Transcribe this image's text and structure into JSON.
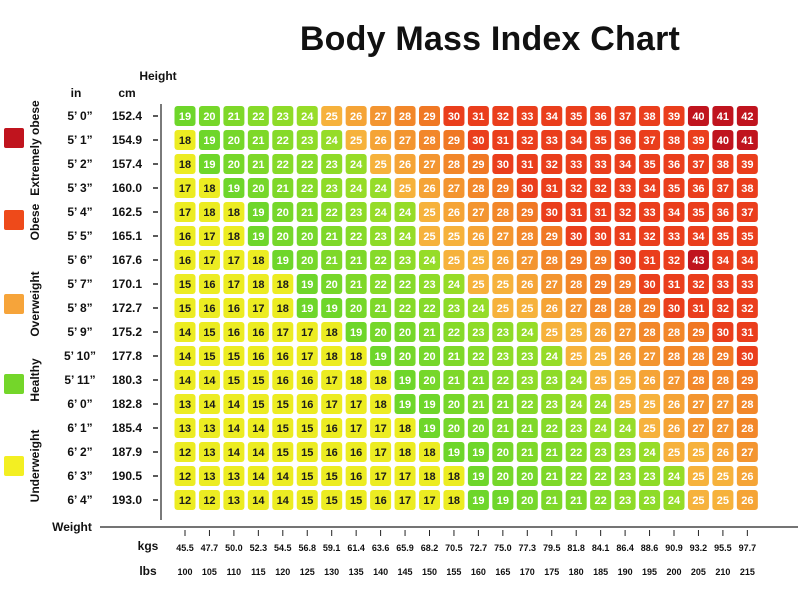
{
  "chart_data": {
    "type": "heatmap",
    "title": "Body Mass Index Chart",
    "height_axis_label": "Height",
    "height_unit_in": "in",
    "height_unit_cm": "cm",
    "weight_axis_label": "Weight",
    "weight_unit_kg": "kgs",
    "weight_unit_lb": "lbs",
    "heights_in": [
      "5’ 0”",
      "5’ 1”",
      "5’ 2”",
      "5’ 3”",
      "5’ 4”",
      "5’ 5”",
      "5’ 6”",
      "5’ 7”",
      "5’ 8”",
      "5’ 9”",
      "5’ 10”",
      "5’ 11”",
      "6’ 0”",
      "6’ 1”",
      "6’ 2”",
      "6’ 3”",
      "6’ 4”"
    ],
    "heights_cm": [
      "152.4",
      "154.9",
      "157.4",
      "160.0",
      "162.5",
      "165.1",
      "167.6",
      "170.1",
      "172.7",
      "175.2",
      "177.8",
      "180.3",
      "182.8",
      "185.4",
      "187.9",
      "190.5",
      "193.0"
    ],
    "weights_kg": [
      "45.5",
      "47.7",
      "50.0",
      "52.3",
      "54.5",
      "56.8",
      "59.1",
      "61.4",
      "63.6",
      "65.9",
      "68.2",
      "70.5",
      "72.7",
      "75.0",
      "77.3",
      "79.5",
      "81.8",
      "84.1",
      "86.4",
      "88.6",
      "90.9",
      "93.2",
      "95.5",
      "97.7"
    ],
    "weights_lb": [
      "100",
      "105",
      "110",
      "115",
      "120",
      "125",
      "130",
      "135",
      "140",
      "145",
      "150",
      "155",
      "160",
      "165",
      "170",
      "175",
      "180",
      "185",
      "190",
      "195",
      "200",
      "205",
      "210",
      "215"
    ],
    "values": [
      [
        19,
        20,
        21,
        22,
        23,
        24,
        25,
        26,
        27,
        28,
        29,
        30,
        31,
        32,
        33,
        34,
        35,
        36,
        37,
        38,
        39,
        40,
        41,
        42
      ],
      [
        18,
        19,
        20,
        21,
        22,
        23,
        24,
        25,
        26,
        27,
        28,
        29,
        30,
        31,
        32,
        33,
        34,
        35,
        36,
        37,
        38,
        39,
        40,
        41
      ],
      [
        18,
        19,
        20,
        21,
        22,
        22,
        23,
        24,
        25,
        26,
        27,
        28,
        29,
        30,
        31,
        32,
        33,
        33,
        34,
        35,
        36,
        37,
        38,
        39
      ],
      [
        17,
        18,
        19,
        20,
        21,
        22,
        23,
        24,
        24,
        25,
        26,
        27,
        28,
        29,
        30,
        31,
        32,
        32,
        33,
        34,
        35,
        36,
        37,
        38
      ],
      [
        17,
        18,
        18,
        19,
        20,
        21,
        22,
        23,
        24,
        24,
        25,
        26,
        27,
        28,
        29,
        30,
        31,
        31,
        32,
        33,
        34,
        35,
        36,
        37
      ],
      [
        16,
        17,
        18,
        19,
        20,
        20,
        21,
        22,
        23,
        24,
        25,
        25,
        26,
        27,
        28,
        29,
        30,
        30,
        31,
        32,
        33,
        34,
        35,
        35
      ],
      [
        16,
        17,
        17,
        18,
        19,
        20,
        21,
        21,
        22,
        23,
        24,
        25,
        25,
        26,
        27,
        28,
        29,
        29,
        30,
        31,
        32,
        43,
        34,
        34
      ],
      [
        15,
        16,
        17,
        18,
        18,
        19,
        20,
        21,
        22,
        22,
        23,
        24,
        25,
        25,
        26,
        27,
        28,
        29,
        29,
        30,
        31,
        32,
        33,
        33
      ],
      [
        15,
        16,
        16,
        17,
        18,
        19,
        19,
        20,
        21,
        22,
        22,
        23,
        24,
        25,
        25,
        26,
        27,
        28,
        28,
        29,
        30,
        31,
        32,
        32
      ],
      [
        14,
        15,
        16,
        16,
        17,
        17,
        18,
        19,
        20,
        20,
        21,
        22,
        23,
        23,
        24,
        25,
        25,
        26,
        27,
        28,
        28,
        29,
        30,
        31
      ],
      [
        14,
        15,
        15,
        16,
        16,
        17,
        18,
        18,
        19,
        20,
        20,
        21,
        22,
        23,
        23,
        24,
        25,
        25,
        26,
        27,
        28,
        28,
        29,
        30
      ],
      [
        14,
        14,
        15,
        15,
        16,
        16,
        17,
        18,
        18,
        19,
        20,
        21,
        21,
        22,
        23,
        23,
        24,
        25,
        25,
        26,
        27,
        28,
        28,
        29
      ],
      [
        13,
        14,
        14,
        15,
        15,
        16,
        17,
        17,
        18,
        19,
        19,
        20,
        21,
        21,
        22,
        23,
        24,
        24,
        25,
        25,
        26,
        27,
        27,
        28
      ],
      [
        13,
        13,
        14,
        14,
        15,
        15,
        16,
        17,
        17,
        18,
        19,
        20,
        20,
        21,
        21,
        22,
        23,
        24,
        24,
        25,
        26,
        27,
        27,
        28
      ],
      [
        12,
        13,
        14,
        14,
        15,
        15,
        16,
        16,
        17,
        18,
        18,
        19,
        19,
        20,
        21,
        21,
        22,
        23,
        23,
        24,
        25,
        25,
        26,
        27
      ],
      [
        12,
        13,
        13,
        14,
        14,
        15,
        15,
        16,
        17,
        17,
        18,
        18,
        19,
        20,
        20,
        21,
        22,
        22,
        23,
        23,
        24,
        25,
        25,
        26
      ],
      [
        12,
        12,
        13,
        14,
        14,
        15,
        15,
        15,
        16,
        17,
        17,
        18,
        19,
        19,
        20,
        21,
        21,
        22,
        23,
        23,
        24,
        25,
        25,
        26
      ]
    ],
    "legend": [
      {
        "label": "Extremely obese",
        "color": "#c0141e"
      },
      {
        "label": "Obese",
        "color": "#ee4a1a"
      },
      {
        "label": "Overweight",
        "color": "#f6a43a"
      },
      {
        "label": "Healthy",
        "color": "#74d62a"
      },
      {
        "label": "Underweight",
        "color": "#f3ef22"
      }
    ]
  }
}
